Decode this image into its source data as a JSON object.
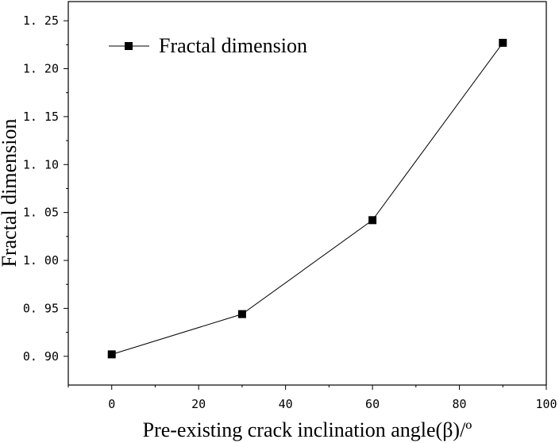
{
  "chart_data": {
    "type": "line",
    "xlabel": "Pre-existing crack inclination angle(β)/º",
    "ylabel": "Fractal dimension",
    "xlim": [
      -10,
      100
    ],
    "ylim": [
      0.87,
      1.27
    ],
    "xticks": [
      0,
      20,
      40,
      60,
      80,
      100
    ],
    "xtick_labels": [
      "0",
      "20",
      "40",
      "60",
      "80",
      "100"
    ],
    "yticks": [
      0.9,
      0.95,
      1.0,
      1.05,
      1.1,
      1.15,
      1.2,
      1.25
    ],
    "ytick_labels": [
      "0. 90",
      "0. 95",
      "1. 00",
      "1. 05",
      "1. 10",
      "1. 15",
      "1. 20",
      "1. 25"
    ],
    "grid": false,
    "legend_position": "top-left",
    "series": [
      {
        "name": "Fractal dimension",
        "marker": "square",
        "color": "#000000",
        "x": [
          0,
          30,
          60,
          90
        ],
        "y": [
          0.902,
          0.944,
          1.042,
          1.227
        ]
      }
    ]
  }
}
